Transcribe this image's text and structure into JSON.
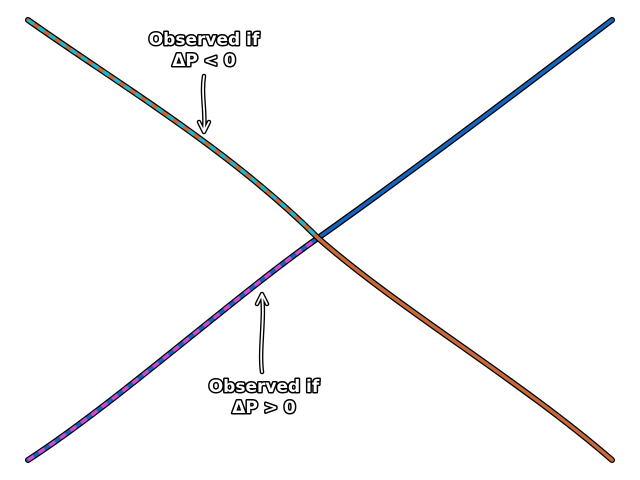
{
  "annotations": {
    "top": {
      "line1": "Observed if",
      "line2": "ΔP < 0"
    },
    "bottom": {
      "line1": "Observed if",
      "line2": "ΔP > 0"
    }
  },
  "colors": {
    "rising_line": "#1565c0",
    "falling_line": "#c8693a",
    "cyan_dash": "#22b5c8",
    "magenta_dash": "#d04ad8",
    "outline": "#000000",
    "background": "#ffffff"
  }
}
